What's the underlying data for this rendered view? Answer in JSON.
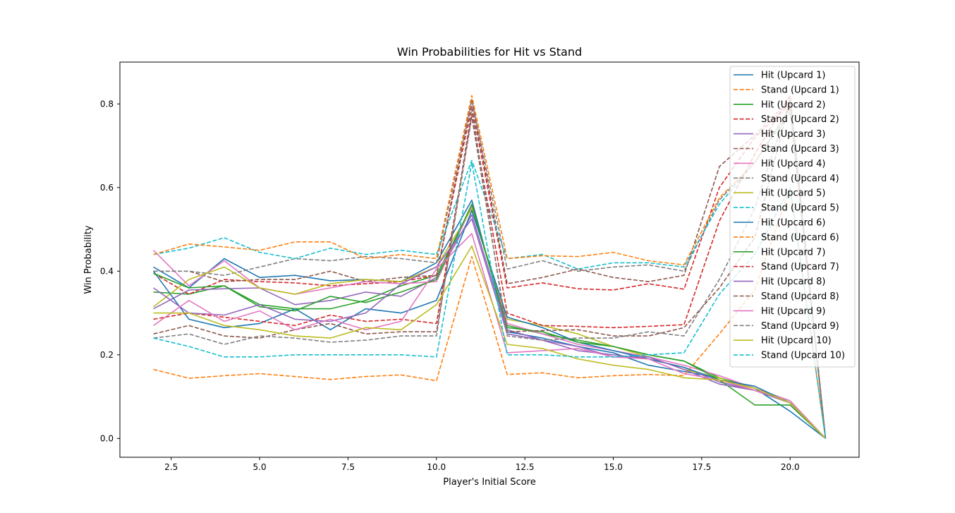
{
  "chart_data": {
    "type": "line",
    "title": "Win Probabilities for Hit vs Stand",
    "xlabel": "Player's Initial Score",
    "ylabel": "Win Probability",
    "xlim": [
      1.05,
      21.95
    ],
    "ylim": [
      -0.045,
      0.9
    ],
    "xticks": [
      2.5,
      5.0,
      7.5,
      10.0,
      12.5,
      15.0,
      17.5,
      20.0
    ],
    "xtick_labels": [
      "2.5",
      "5.0",
      "7.5",
      "10.0",
      "12.5",
      "15.0",
      "17.5",
      "20.0"
    ],
    "yticks": [
      0.0,
      0.2,
      0.4,
      0.6,
      0.8
    ],
    "ytick_labels": [
      "0.0",
      "0.2",
      "0.4",
      "0.6",
      "0.8"
    ],
    "grid": false,
    "legend_position": "top-right",
    "x": [
      2,
      3,
      4,
      5,
      6,
      7,
      8,
      9,
      10,
      11,
      12,
      13,
      14,
      15,
      16,
      17,
      18,
      19,
      20,
      21
    ],
    "series": [
      {
        "name": "Hit (Upcard 1)",
        "color": "#1f77b4",
        "dash": "solid",
        "values": [
          0.41,
          0.36,
          0.43,
          0.385,
          0.39,
          0.377,
          0.38,
          0.375,
          0.42,
          0.57,
          0.255,
          0.24,
          0.22,
          0.205,
          0.175,
          0.16,
          0.145,
          0.12,
          0.065,
          0.0
        ]
      },
      {
        "name": "Stand (Upcard 1)",
        "color": "#ff7f0e",
        "dash": "dashed",
        "values": [
          0.165,
          0.144,
          0.15,
          0.155,
          0.148,
          0.141,
          0.148,
          0.152,
          0.138,
          0.435,
          0.153,
          0.157,
          0.145,
          0.15,
          0.153,
          0.15,
          0.25,
          0.355,
          0.6,
          0.0
        ]
      },
      {
        "name": "Hit (Upcard 2)",
        "color": "#2ca02c",
        "dash": "solid",
        "values": [
          0.35,
          0.345,
          0.365,
          0.32,
          0.31,
          0.31,
          0.33,
          0.365,
          0.39,
          0.555,
          0.27,
          0.25,
          0.235,
          0.22,
          0.2,
          0.185,
          0.145,
          0.12,
          0.09,
          0.0
        ]
      },
      {
        "name": "Stand (Upcard 2)",
        "color": "#d62728",
        "dash": "dashed",
        "values": [
          0.395,
          0.345,
          0.38,
          0.375,
          0.372,
          0.365,
          0.37,
          0.375,
          0.39,
          0.795,
          0.36,
          0.372,
          0.358,
          0.355,
          0.37,
          0.357,
          0.6,
          0.72,
          0.8,
          0.0
        ]
      },
      {
        "name": "Hit (Upcard 3)",
        "color": "#9467bd",
        "dash": "solid",
        "values": [
          0.31,
          0.355,
          0.358,
          0.36,
          0.32,
          0.33,
          0.35,
          0.34,
          0.385,
          0.535,
          0.26,
          0.235,
          0.21,
          0.2,
          0.19,
          0.17,
          0.135,
          0.115,
          0.085,
          0.0
        ]
      },
      {
        "name": "Stand (Upcard 3)",
        "color": "#8c564b",
        "dash": "dashed",
        "values": [
          0.4,
          0.4,
          0.375,
          0.38,
          0.38,
          0.4,
          0.375,
          0.385,
          0.39,
          0.81,
          0.37,
          0.385,
          0.405,
          0.385,
          0.375,
          0.39,
          0.65,
          0.725,
          0.81,
          0.0
        ]
      },
      {
        "name": "Hit (Upcard 4)",
        "color": "#e377c2",
        "dash": "solid",
        "values": [
          0.45,
          0.365,
          0.425,
          0.36,
          0.345,
          0.36,
          0.375,
          0.37,
          0.375,
          0.555,
          0.275,
          0.25,
          0.225,
          0.21,
          0.195,
          0.175,
          0.15,
          0.12,
          0.09,
          0.0
        ]
      },
      {
        "name": "Stand (Upcard 4)",
        "color": "#7f7f7f",
        "dash": "dashed",
        "values": [
          0.4,
          0.4,
          0.39,
          0.41,
          0.43,
          0.425,
          0.435,
          0.43,
          0.42,
          0.81,
          0.405,
          0.425,
          0.4,
          0.41,
          0.415,
          0.4,
          0.57,
          0.66,
          0.79,
          0.0
        ]
      },
      {
        "name": "Hit (Upcard 5)",
        "color": "#bcbd22",
        "dash": "solid",
        "values": [
          0.315,
          0.38,
          0.41,
          0.36,
          0.345,
          0.37,
          0.38,
          0.375,
          0.41,
          0.55,
          0.285,
          0.27,
          0.25,
          0.22,
          0.195,
          0.165,
          0.145,
          0.115,
          0.085,
          0.0
        ]
      },
      {
        "name": "Stand (Upcard 5)",
        "color": "#17becf",
        "dash": "dashed",
        "values": [
          0.44,
          0.455,
          0.48,
          0.445,
          0.43,
          0.455,
          0.44,
          0.45,
          0.44,
          0.665,
          0.43,
          0.44,
          0.405,
          0.42,
          0.42,
          0.41,
          0.56,
          0.66,
          0.78,
          0.0
        ]
      },
      {
        "name": "Hit (Upcard 6)",
        "color": "#1f77b4",
        "dash": "solid",
        "values": [
          0.4,
          0.285,
          0.265,
          0.275,
          0.31,
          0.26,
          0.31,
          0.3,
          0.33,
          0.545,
          0.29,
          0.265,
          0.23,
          0.21,
          0.19,
          0.17,
          0.14,
          0.125,
          0.085,
          0.0
        ]
      },
      {
        "name": "Stand (Upcard 6)",
        "color": "#ff7f0e",
        "dash": "dashed",
        "values": [
          0.44,
          0.465,
          0.458,
          0.45,
          0.47,
          0.47,
          0.43,
          0.44,
          0.43,
          0.82,
          0.43,
          0.437,
          0.435,
          0.445,
          0.425,
          0.415,
          0.575,
          0.66,
          0.79,
          0.0
        ]
      },
      {
        "name": "Hit (Upcard 7)",
        "color": "#2ca02c",
        "dash": "solid",
        "values": [
          0.395,
          0.36,
          0.365,
          0.315,
          0.305,
          0.34,
          0.325,
          0.35,
          0.38,
          0.56,
          0.265,
          0.255,
          0.23,
          0.22,
          0.2,
          0.185,
          0.14,
          0.08,
          0.08,
          0.0
        ]
      },
      {
        "name": "Stand (Upcard 7)",
        "color": "#d62728",
        "dash": "dashed",
        "values": [
          0.285,
          0.3,
          0.29,
          0.28,
          0.27,
          0.295,
          0.28,
          0.285,
          0.275,
          0.775,
          0.3,
          0.27,
          0.268,
          0.265,
          0.268,
          0.272,
          0.52,
          0.68,
          0.82,
          0.0
        ]
      },
      {
        "name": "Hit (Upcard 8)",
        "color": "#9467bd",
        "dash": "solid",
        "values": [
          0.36,
          0.3,
          0.295,
          0.32,
          0.285,
          0.28,
          0.3,
          0.37,
          0.41,
          0.525,
          0.25,
          0.235,
          0.22,
          0.195,
          0.195,
          0.165,
          0.13,
          0.115,
          0.085,
          0.0
        ]
      },
      {
        "name": "Stand (Upcard 8)",
        "color": "#8c564b",
        "dash": "dashed",
        "values": [
          0.25,
          0.27,
          0.245,
          0.24,
          0.26,
          0.275,
          0.25,
          0.255,
          0.255,
          0.77,
          0.255,
          0.258,
          0.26,
          0.245,
          0.245,
          0.265,
          0.36,
          0.48,
          0.81,
          0.0
        ]
      },
      {
        "name": "Hit (Upcard 9)",
        "color": "#e377c2",
        "dash": "solid",
        "values": [
          0.27,
          0.33,
          0.28,
          0.305,
          0.26,
          0.285,
          0.26,
          0.28,
          0.405,
          0.49,
          0.205,
          0.21,
          0.215,
          0.195,
          0.19,
          0.155,
          0.14,
          0.115,
          0.09,
          0.0
        ]
      },
      {
        "name": "Stand (Upcard 9)",
        "color": "#7f7f7f",
        "dash": "dashed",
        "values": [
          0.24,
          0.25,
          0.225,
          0.245,
          0.24,
          0.23,
          0.235,
          0.245,
          0.245,
          0.79,
          0.245,
          0.235,
          0.24,
          0.24,
          0.255,
          0.245,
          0.38,
          0.55,
          0.81,
          0.0
        ]
      },
      {
        "name": "Hit (Upcard 10)",
        "color": "#bcbd22",
        "dash": "solid",
        "values": [
          0.3,
          0.3,
          0.27,
          0.26,
          0.245,
          0.24,
          0.265,
          0.26,
          0.32,
          0.46,
          0.225,
          0.215,
          0.19,
          0.175,
          0.165,
          0.145,
          0.14,
          0.12,
          0.085,
          0.0
        ]
      },
      {
        "name": "Stand (Upcard 10)",
        "color": "#17becf",
        "dash": "dashed",
        "values": [
          0.24,
          0.22,
          0.195,
          0.195,
          0.2,
          0.2,
          0.2,
          0.2,
          0.195,
          0.66,
          0.2,
          0.2,
          0.195,
          0.195,
          0.2,
          0.205,
          0.345,
          0.44,
          0.6,
          0.0
        ]
      }
    ]
  }
}
